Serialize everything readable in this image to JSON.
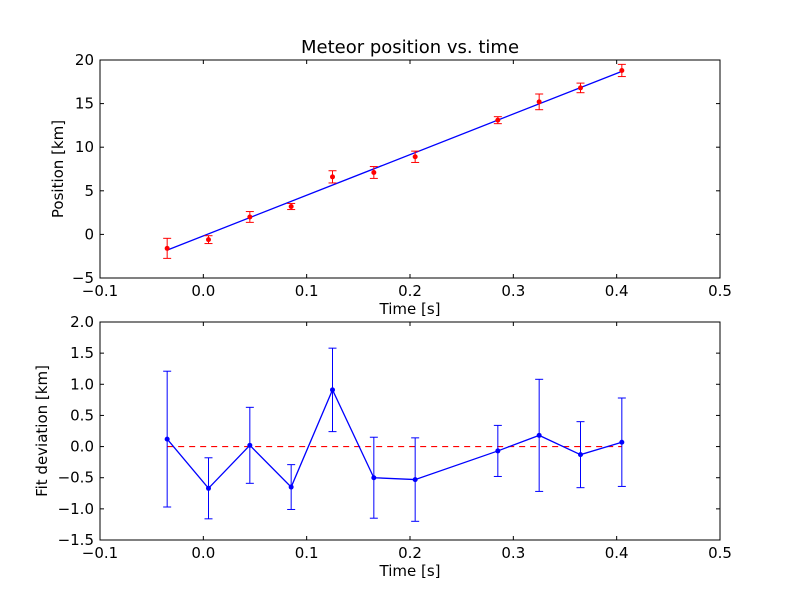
{
  "chart_data": [
    {
      "type": "scatter",
      "title": "Meteor position vs. time",
      "xlabel": "Time [s]",
      "ylabel": "Position [km]",
      "xlim": [
        -0.1,
        0.5
      ],
      "ylim": [
        -5,
        20
      ],
      "xticks": [
        "−0.1",
        "0.0",
        "0.1",
        "0.2",
        "0.3",
        "0.4",
        "0.5"
      ],
      "yticks": [
        "−5",
        "0",
        "5",
        "10",
        "15",
        "20"
      ],
      "grid": false,
      "colors": {
        "points": "#ff0000",
        "errorbars": "#ff0000",
        "fit": "#0000ff"
      },
      "points": [
        {
          "x": -0.035,
          "y": -1.6,
          "err": 1.15
        },
        {
          "x": 0.005,
          "y": -0.6,
          "err": 0.45
        },
        {
          "x": 0.045,
          "y": 2.0,
          "err": 0.62
        },
        {
          "x": 0.085,
          "y": 3.2,
          "err": 0.35
        },
        {
          "x": 0.125,
          "y": 6.6,
          "err": 0.7
        },
        {
          "x": 0.165,
          "y": 7.1,
          "err": 0.68
        },
        {
          "x": 0.205,
          "y": 8.9,
          "err": 0.65
        },
        {
          "x": 0.285,
          "y": 13.1,
          "err": 0.4
        },
        {
          "x": 0.325,
          "y": 15.2,
          "err": 0.9
        },
        {
          "x": 0.365,
          "y": 16.8,
          "err": 0.55
        },
        {
          "x": 0.405,
          "y": 18.8,
          "err": 0.7
        }
      ],
      "fit_line": {
        "x": [
          -0.035,
          0.405
        ],
        "y": [
          -1.8,
          18.7
        ]
      }
    },
    {
      "type": "line",
      "title": "",
      "xlabel": "Time [s]",
      "ylabel": "Fit deviation [km]",
      "xlim": [
        -0.1,
        0.5
      ],
      "ylim": [
        -1.5,
        2.0
      ],
      "xticks": [
        "−0.1",
        "0.0",
        "0.1",
        "0.2",
        "0.3",
        "0.4",
        "0.5"
      ],
      "yticks": [
        "−1.5",
        "−1.0",
        "−0.5",
        "0.0",
        "0.5",
        "1.0",
        "1.5",
        "2.0"
      ],
      "grid": false,
      "colors": {
        "series": "#0000ff",
        "reference": "#ff0000"
      },
      "points": [
        {
          "x": -0.035,
          "y": 0.12,
          "err": 1.09
        },
        {
          "x": 0.005,
          "y": -0.67,
          "err": 0.49
        },
        {
          "x": 0.045,
          "y": 0.02,
          "err": 0.61
        },
        {
          "x": 0.085,
          "y": -0.65,
          "err": 0.36
        },
        {
          "x": 0.125,
          "y": 0.91,
          "err": 0.67
        },
        {
          "x": 0.165,
          "y": -0.5,
          "err": 0.65
        },
        {
          "x": 0.205,
          "y": -0.53,
          "err": 0.67
        },
        {
          "x": 0.285,
          "y": -0.07,
          "err": 0.41
        },
        {
          "x": 0.325,
          "y": 0.18,
          "err": 0.9
        },
        {
          "x": 0.365,
          "y": -0.13,
          "err": 0.53
        },
        {
          "x": 0.405,
          "y": 0.07,
          "err": 0.71
        }
      ],
      "reference_line": {
        "y": 0.0,
        "x": [
          -0.035,
          0.405
        ],
        "style": "dashed"
      }
    }
  ]
}
